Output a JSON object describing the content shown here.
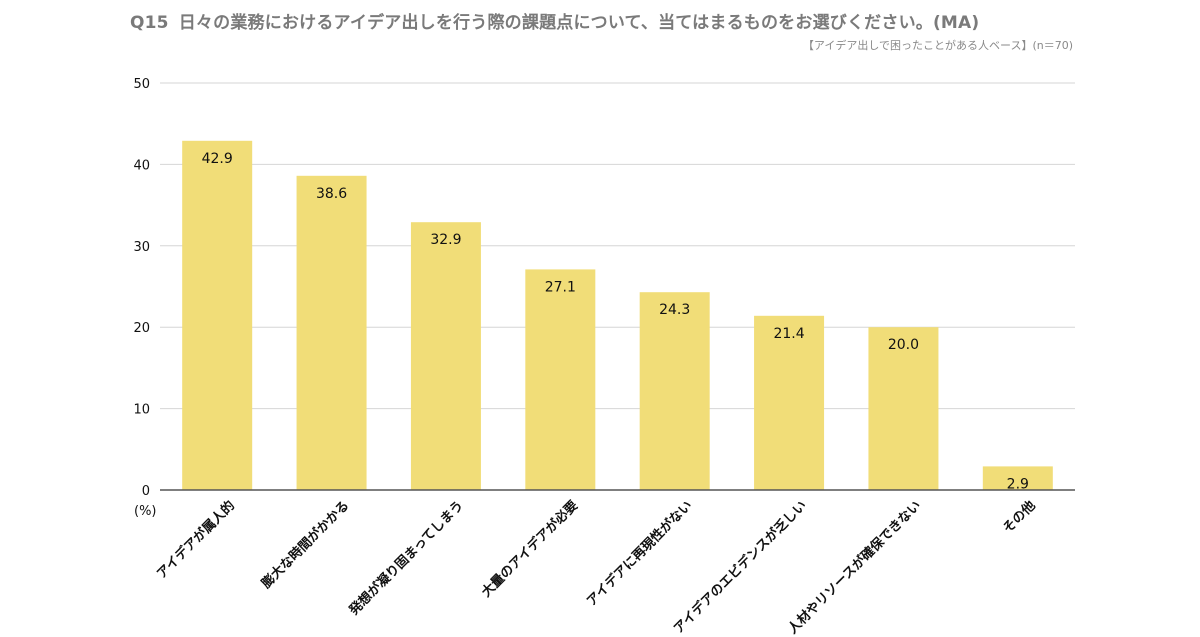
{
  "title": {
    "qno": "Q15",
    "text": "日々の業務におけるアイデア出しを行う際の課題点について、当てはまるものをお選びください。(MA)"
  },
  "subtitle": "【アイデア出しで困ったことがある人ベース】(n＝70)",
  "colors": {
    "bar": "#f1dd78",
    "grid": "#d6d6d6",
    "axis": "#555555"
  },
  "chart_data": {
    "type": "bar",
    "categories": [
      "アイデアが属人的",
      "膨大な時間がかかる",
      "発想が凝り固まってしまう",
      "大量のアイデアが必要",
      "アイデアに再現性がない",
      "アイデアのエビデンスが乏しい",
      "人材やリソースが確保できない",
      "その他"
    ],
    "values": [
      42.9,
      38.6,
      32.9,
      27.1,
      24.3,
      21.4,
      20.0,
      2.9
    ],
    "value_labels": [
      "42.9",
      "38.6",
      "32.9",
      "27.1",
      "24.3",
      "21.4",
      "20.0",
      "2.9"
    ],
    "ylim": [
      0,
      50
    ],
    "yticks": [
      0,
      10,
      20,
      30,
      40,
      50
    ],
    "unit_label": "(%)",
    "grid": true
  }
}
